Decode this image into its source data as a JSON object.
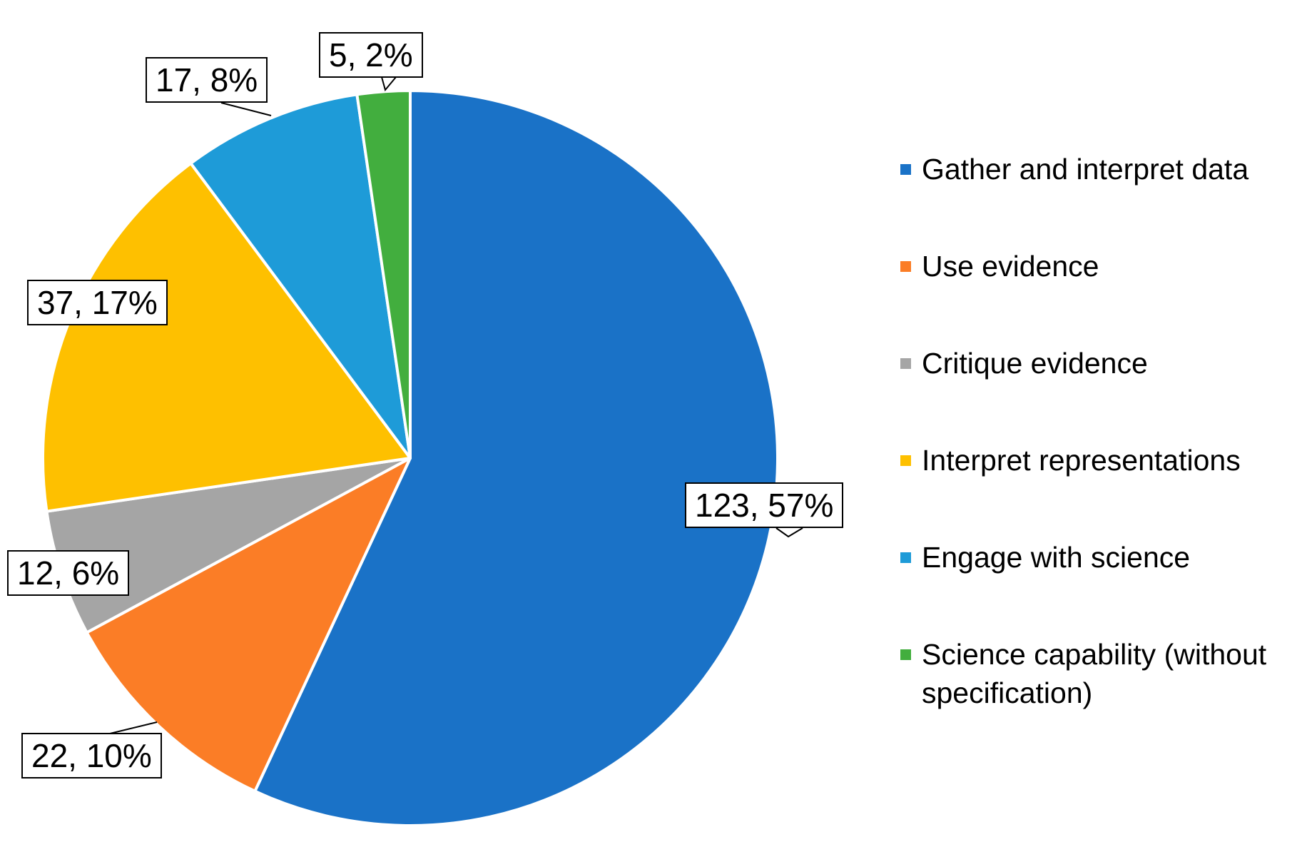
{
  "chart_data": {
    "type": "pie",
    "title": "",
    "slices": [
      {
        "name": "Gather and interpret data",
        "value": 123,
        "label": "123, 57%",
        "color": "#1a72c7"
      },
      {
        "name": "Use evidence",
        "value": 22,
        "label": "22, 10%",
        "color": "#fb7d26"
      },
      {
        "name": "Critique evidence",
        "value": 12,
        "label": "12, 6%",
        "color": "#a5a5a5"
      },
      {
        "name": "Interpret representations",
        "value": 37,
        "label": "37, 17%",
        "color": "#fec000"
      },
      {
        "name": "Engage with science",
        "value": 17,
        "label": "17, 8%",
        "color": "#1e9bd8"
      },
      {
        "name": "Science capability (without specification)",
        "value": 5,
        "label": "5, 2%",
        "color": "#42ae3e"
      }
    ],
    "legend_position": "right",
    "start_angle": "12 o'clock",
    "direction": "clockwise"
  }
}
